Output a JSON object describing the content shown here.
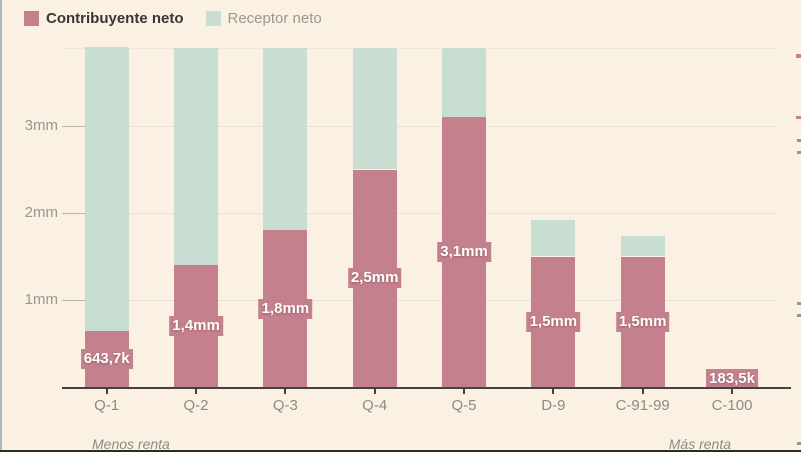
{
  "legend": {
    "items": [
      {
        "label": "Contribuyente neto",
        "color": "#c5808d",
        "active": true
      },
      {
        "label": "Receptor neto",
        "color": "#c8ded3",
        "active": false
      }
    ]
  },
  "chart_data": {
    "type": "bar",
    "stacked": true,
    "title": "",
    "categories": [
      "Q-1",
      "Q-2",
      "Q-3",
      "Q-4",
      "Q-5",
      "D-9",
      "C-91-99",
      "C-100"
    ],
    "series": [
      {
        "name": "Contribuyente neto",
        "color": "#c5808d",
        "values_mm": [
          0.6437,
          1.4,
          1.8,
          2.5,
          3.1,
          1.5,
          1.5,
          0.1835
        ],
        "value_labels": [
          "643,7k",
          "1,4mm",
          "1,8mm",
          "2,5mm",
          "3,1mm",
          "1,5mm",
          "1,5mm",
          "183,5k"
        ]
      },
      {
        "name": "Receptor neto",
        "color": "#c8ded3",
        "values_mm": [
          3.26,
          2.5,
          2.1,
          1.4,
          0.8,
          0.42,
          0.24,
          0
        ],
        "value_labels": []
      }
    ],
    "y_axis": {
      "ticks": [
        {
          "value": 3,
          "label": "3mm"
        },
        {
          "value": 2,
          "label": "2mm"
        },
        {
          "value": 1,
          "label": "1mm"
        }
      ],
      "range": [
        0,
        3.9
      ]
    },
    "x_axis_annotations": {
      "left": "Menos renta",
      "right": "Más renta"
    },
    "grid": "horizontal",
    "legend_position": "top-left"
  },
  "colors": {
    "background": "#faf1e2",
    "grid": "#e6e2d8",
    "axis": "#45413d",
    "tick_label": "#9b9690",
    "category_label": "#8e8a84",
    "left_border": "#a9b9ca",
    "bottom_edge": "#2e2b27"
  }
}
